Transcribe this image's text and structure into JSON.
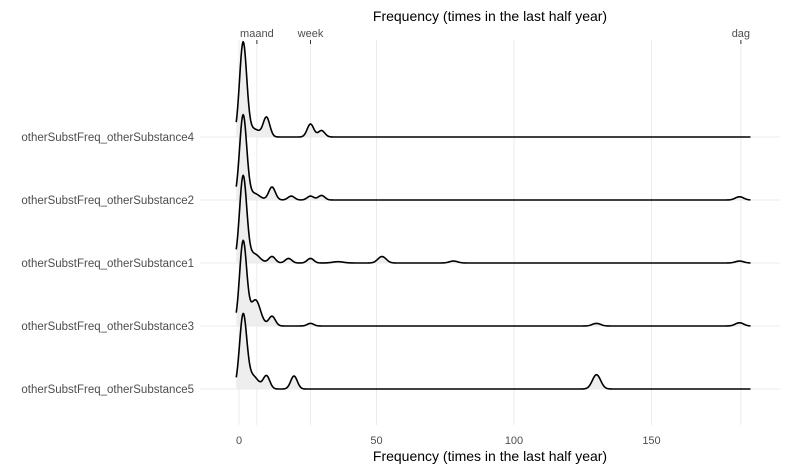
{
  "chart_data": {
    "type": "ridgeline",
    "top_axis_title": "Frequency (times in the last half year)",
    "bottom_axis_title": "Frequency (times in the last half year)",
    "xlim": [
      -5,
      186
    ],
    "x_ticks": [
      0,
      50,
      100,
      150
    ],
    "x_tick_labels": [
      "0",
      "50",
      "100",
      "150"
    ],
    "top_ticks": [
      {
        "value": 6.5,
        "label": "maand"
      },
      {
        "value": 26,
        "label": "week"
      },
      {
        "value": 182.5,
        "label": "dag"
      }
    ],
    "grid": true,
    "series": [
      {
        "name": "otherSubstFreq_otherSubstance4",
        "x_range": [
          -1,
          186
        ],
        "peaks": [
          {
            "x": 1.5,
            "height": 1.45,
            "width": 1.3
          },
          {
            "x": 5.5,
            "height": 0.12,
            "width": 2.0
          },
          {
            "x": 10,
            "height": 0.3,
            "width": 1.2
          },
          {
            "x": 26,
            "height": 0.2,
            "width": 1.2
          },
          {
            "x": 30,
            "height": 0.1,
            "width": 1.2
          }
        ]
      },
      {
        "name": "otherSubstFreq_otherSubstance2",
        "x_range": [
          -1,
          186
        ],
        "peaks": [
          {
            "x": 1.5,
            "height": 1.3,
            "width": 1.3
          },
          {
            "x": 5.5,
            "height": 0.1,
            "width": 2.0
          },
          {
            "x": 12,
            "height": 0.2,
            "width": 1.2
          },
          {
            "x": 19,
            "height": 0.06,
            "width": 1.2
          },
          {
            "x": 26,
            "height": 0.06,
            "width": 1.2
          },
          {
            "x": 30,
            "height": 0.07,
            "width": 1.2
          },
          {
            "x": 182,
            "height": 0.05,
            "width": 1.5
          }
        ]
      },
      {
        "name": "otherSubstFreq_otherSubstance1",
        "x_range": [
          -1,
          186
        ],
        "peaks": [
          {
            "x": 1.5,
            "height": 1.33,
            "width": 1.3
          },
          {
            "x": 5.5,
            "height": 0.14,
            "width": 2.0
          },
          {
            "x": 12,
            "height": 0.1,
            "width": 1.2
          },
          {
            "x": 18,
            "height": 0.07,
            "width": 1.2
          },
          {
            "x": 26,
            "height": 0.07,
            "width": 1.2
          },
          {
            "x": 36,
            "height": 0.02,
            "width": 2.0
          },
          {
            "x": 52,
            "height": 0.1,
            "width": 1.5
          },
          {
            "x": 78,
            "height": 0.03,
            "width": 1.5
          },
          {
            "x": 182,
            "height": 0.03,
            "width": 1.5
          }
        ]
      },
      {
        "name": "otherSubstFreq_otherSubstance3",
        "x_range": [
          -1,
          186
        ],
        "peaks": [
          {
            "x": 1.5,
            "height": 1.3,
            "width": 1.3
          },
          {
            "x": 6,
            "height": 0.4,
            "width": 1.8
          },
          {
            "x": 12,
            "height": 0.15,
            "width": 1.2
          },
          {
            "x": 26,
            "height": 0.04,
            "width": 1.2
          },
          {
            "x": 130,
            "height": 0.04,
            "width": 1.5
          },
          {
            "x": 182,
            "height": 0.05,
            "width": 1.5
          }
        ]
      },
      {
        "name": "otherSubstFreq_otherSubstance5",
        "x_range": [
          -1,
          186
        ],
        "peaks": [
          {
            "x": 1.5,
            "height": 1.12,
            "width": 1.3
          },
          {
            "x": 5,
            "height": 0.2,
            "width": 2.0
          },
          {
            "x": 10,
            "height": 0.2,
            "width": 1.2
          },
          {
            "x": 20,
            "height": 0.2,
            "width": 1.2
          },
          {
            "x": 130,
            "height": 0.22,
            "width": 1.5
          }
        ]
      }
    ]
  }
}
